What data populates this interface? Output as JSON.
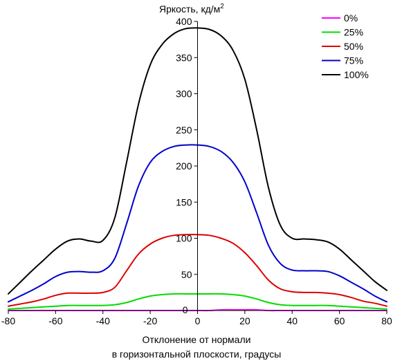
{
  "chart_data": {
    "type": "line",
    "ylabel": "Яркость, кд/м",
    "ylabel_superscript": "2",
    "xlabel_line1": "Отклонение от нормали",
    "xlabel_line2": "в горизонтальной плоскости, градусы",
    "xlim": [
      -80,
      80
    ],
    "ylim": [
      0,
      400
    ],
    "x_ticks": [
      -80,
      -60,
      -40,
      -20,
      0,
      20,
      40,
      60,
      80
    ],
    "y_ticks": [
      50,
      100,
      150,
      200,
      250,
      300,
      350,
      400
    ],
    "y_zero_label": "0",
    "legend_position": "top-right",
    "x": [
      -80,
      -75,
      -70,
      -65,
      -60,
      -55,
      -50,
      -45,
      -40,
      -35,
      -30,
      -25,
      -20,
      -15,
      -10,
      -5,
      0,
      5,
      10,
      15,
      20,
      25,
      30,
      35,
      40,
      45,
      50,
      55,
      60,
      65,
      70,
      75,
      80
    ],
    "series": [
      {
        "name": "0%",
        "color": "#ff00ff",
        "values": [
          0,
          0,
          0,
          0,
          0,
          0,
          0,
          0,
          0,
          0,
          0,
          0,
          0,
          0,
          0,
          0,
          0,
          0,
          1,
          1,
          1,
          1,
          0,
          0,
          0,
          0,
          0,
          0,
          0,
          0,
          0,
          0,
          0
        ]
      },
      {
        "name": "25%",
        "color": "#00dd00",
        "values": [
          2,
          3,
          4,
          5,
          6,
          7,
          7,
          7,
          7,
          8,
          11,
          16,
          20,
          22,
          23,
          23,
          23,
          23,
          23,
          22,
          20,
          16,
          11,
          8,
          7,
          7,
          7,
          7,
          6,
          5,
          4,
          3,
          2
        ]
      },
      {
        "name": "50%",
        "color": "#dd0000",
        "values": [
          6,
          9,
          12,
          16,
          21,
          24,
          24,
          24,
          25,
          32,
          55,
          78,
          92,
          100,
          104,
          105,
          105,
          104,
          100,
          93,
          80,
          62,
          42,
          30,
          26,
          25,
          25,
          24,
          22,
          18,
          13,
          10,
          6
        ]
      },
      {
        "name": "75%",
        "color": "#0000cc",
        "values": [
          12,
          20,
          28,
          37,
          47,
          53,
          54,
          53,
          55,
          72,
          120,
          172,
          205,
          220,
          227,
          229,
          229,
          227,
          220,
          205,
          178,
          135,
          90,
          65,
          56,
          55,
          55,
          54,
          48,
          39,
          30,
          20,
          12
        ]
      },
      {
        "name": "100%",
        "color": "#000000",
        "values": [
          23,
          39,
          55,
          70,
          85,
          96,
          99,
          96,
          97,
          128,
          205,
          285,
          340,
          368,
          383,
          390,
          391,
          389,
          380,
          360,
          320,
          250,
          170,
          118,
          100,
          99,
          98,
          95,
          85,
          70,
          55,
          40,
          28
        ]
      }
    ]
  }
}
